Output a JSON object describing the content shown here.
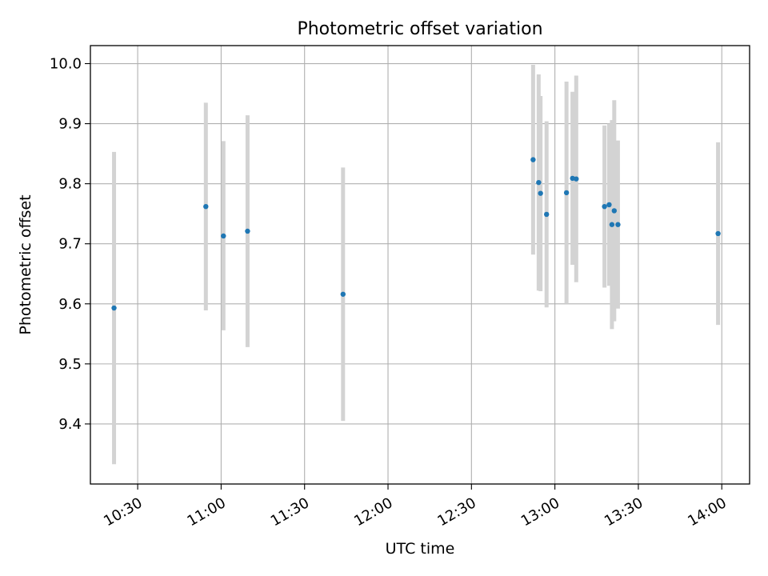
{
  "chart_data": {
    "type": "scatter",
    "title": "Photometric offset variation",
    "xlabel": "UTC time",
    "ylabel": "Photometric offset",
    "xlim": [
      "10:13",
      "14:10"
    ],
    "ylim": [
      9.3,
      10.03
    ],
    "x_ticks": [
      "10:30",
      "11:00",
      "11:30",
      "12:00",
      "12:30",
      "13:00",
      "13:30",
      "14:00"
    ],
    "y_ticks": [
      "9.4",
      "9.5",
      "9.6",
      "9.7",
      "9.8",
      "9.9",
      "10.0"
    ],
    "grid": true,
    "colors": {
      "point": "#1f77b4",
      "errorbar": "#d3d3d3",
      "grid": "#b0b0b0"
    },
    "points": [
      {
        "time": "10:21:30",
        "y": 9.593,
        "low": 9.333,
        "high": 9.853
      },
      {
        "time": "10:54:30",
        "y": 9.762,
        "low": 9.589,
        "high": 9.935
      },
      {
        "time": "11:00:50",
        "y": 9.713,
        "low": 9.556,
        "high": 9.871
      },
      {
        "time": "11:09:30",
        "y": 9.721,
        "low": 9.528,
        "high": 9.914
      },
      {
        "time": "11:43:50",
        "y": 9.616,
        "low": 9.405,
        "high": 9.827
      },
      {
        "time": "12:52:10",
        "y": 9.84,
        "low": 9.682,
        "high": 9.998
      },
      {
        "time": "12:54:10",
        "y": 9.802,
        "low": 9.622,
        "high": 9.982
      },
      {
        "time": "12:54:50",
        "y": 9.784,
        "low": 9.621,
        "high": 9.946
      },
      {
        "time": "12:57:00",
        "y": 9.749,
        "low": 9.594,
        "high": 9.904
      },
      {
        "time": "13:04:10",
        "y": 9.785,
        "low": 9.6,
        "high": 9.97
      },
      {
        "time": "13:06:20",
        "y": 9.809,
        "low": 9.665,
        "high": 9.953
      },
      {
        "time": "13:07:40",
        "y": 9.808,
        "low": 9.636,
        "high": 9.98
      },
      {
        "time": "13:17:50",
        "y": 9.762,
        "low": 9.627,
        "high": 9.897
      },
      {
        "time": "13:19:30",
        "y": 9.765,
        "low": 9.63,
        "high": 9.9
      },
      {
        "time": "13:20:30",
        "y": 9.732,
        "low": 9.558,
        "high": 9.906
      },
      {
        "time": "13:21:20",
        "y": 9.755,
        "low": 9.571,
        "high": 9.939
      },
      {
        "time": "13:22:40",
        "y": 9.732,
        "low": 9.592,
        "high": 9.872
      },
      {
        "time": "13:58:40",
        "y": 9.717,
        "low": 9.565,
        "high": 9.869
      }
    ]
  }
}
